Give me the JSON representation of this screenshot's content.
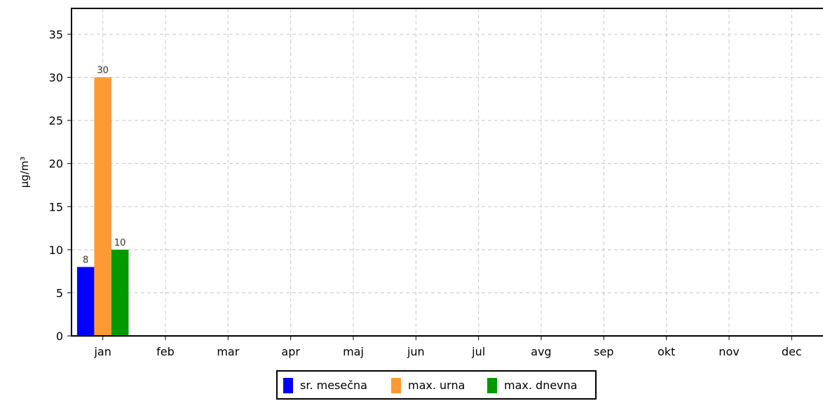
{
  "chart_data": {
    "type": "bar",
    "categories": [
      "jan",
      "feb",
      "mar",
      "apr",
      "maj",
      "jun",
      "jul",
      "avg",
      "sep",
      "okt",
      "nov",
      "dec"
    ],
    "series": [
      {
        "name": "sr. mesečna",
        "color": "#0000ff",
        "values": [
          8,
          null,
          null,
          null,
          null,
          null,
          null,
          null,
          null,
          null,
          null,
          null
        ]
      },
      {
        "name": "max. urna",
        "color": "#ff9933",
        "values": [
          30,
          null,
          null,
          null,
          null,
          null,
          null,
          null,
          null,
          null,
          null,
          null
        ]
      },
      {
        "name": "max. dnevna",
        "color": "#009900",
        "values": [
          10,
          null,
          null,
          null,
          null,
          null,
          null,
          null,
          null,
          null,
          null,
          null
        ]
      }
    ],
    "data_labels": [
      [
        "8",
        null,
        null,
        null,
        null,
        null,
        null,
        null,
        null,
        null,
        null,
        null
      ],
      [
        "30",
        null,
        null,
        null,
        null,
        null,
        null,
        null,
        null,
        null,
        null,
        null
      ],
      [
        "10",
        null,
        null,
        null,
        null,
        null,
        null,
        null,
        null,
        null,
        null,
        null
      ]
    ],
    "ylabel": "µg/m³",
    "ylim": [
      0,
      38
    ],
    "yticks": [
      0,
      5,
      10,
      15,
      20,
      25,
      30,
      35
    ],
    "grid": true,
    "legend_position": "bottom-center"
  }
}
